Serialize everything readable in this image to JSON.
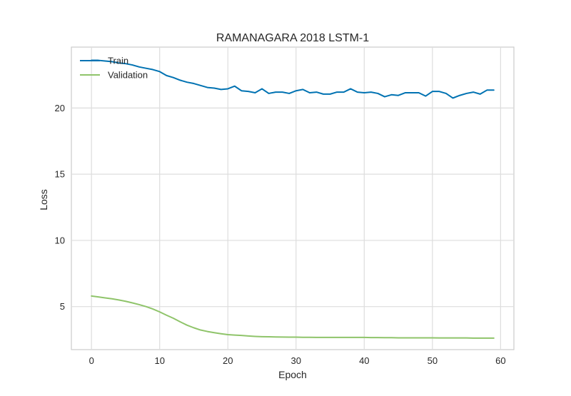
{
  "chart_data": {
    "type": "line",
    "title": "RAMANAGARA 2018 LSTM-1",
    "xlabel": "Epoch",
    "ylabel": "Loss",
    "xlim": [
      -2.95,
      61.95
    ],
    "ylim": [
      1.75,
      24.6
    ],
    "xticks": [
      0,
      10,
      20,
      30,
      40,
      50,
      60
    ],
    "yticks": [
      5,
      10,
      15,
      20
    ],
    "grid": true,
    "legend_position": "top-left",
    "x": [
      0,
      1,
      2,
      3,
      4,
      5,
      6,
      7,
      8,
      9,
      10,
      11,
      12,
      13,
      14,
      15,
      16,
      17,
      18,
      19,
      20,
      21,
      22,
      23,
      24,
      25,
      26,
      27,
      28,
      29,
      30,
      31,
      32,
      33,
      34,
      35,
      36,
      37,
      38,
      39,
      40,
      41,
      42,
      43,
      44,
      45,
      46,
      47,
      48,
      49,
      50,
      51,
      52,
      53,
      54,
      55,
      56,
      57,
      58,
      59
    ],
    "series": [
      {
        "name": "Train",
        "color": "#0072b2",
        "values": [
          23.6,
          23.6,
          23.55,
          23.5,
          23.4,
          23.35,
          23.25,
          23.1,
          23.0,
          22.9,
          22.75,
          22.45,
          22.3,
          22.1,
          21.95,
          21.85,
          21.7,
          21.55,
          21.5,
          21.4,
          21.45,
          21.65,
          21.3,
          21.25,
          21.15,
          21.45,
          21.1,
          21.2,
          21.2,
          21.1,
          21.3,
          21.4,
          21.15,
          21.2,
          21.05,
          21.05,
          21.2,
          21.2,
          21.45,
          21.2,
          21.15,
          21.2,
          21.1,
          20.85,
          21.0,
          20.95,
          21.15,
          21.15,
          21.15,
          20.9,
          21.25,
          21.25,
          21.1,
          20.75,
          20.95,
          21.1,
          21.2,
          21.05,
          21.35,
          21.35
        ]
      },
      {
        "name": "Validation",
        "color": "#8fc46a",
        "values": [
          5.8,
          5.73,
          5.66,
          5.59,
          5.5,
          5.4,
          5.28,
          5.15,
          5.0,
          4.82,
          4.6,
          4.35,
          4.12,
          3.85,
          3.6,
          3.4,
          3.23,
          3.12,
          3.03,
          2.95,
          2.88,
          2.85,
          2.82,
          2.78,
          2.75,
          2.73,
          2.72,
          2.71,
          2.7,
          2.69,
          2.69,
          2.68,
          2.68,
          2.67,
          2.67,
          2.67,
          2.67,
          2.67,
          2.67,
          2.67,
          2.67,
          2.66,
          2.66,
          2.65,
          2.65,
          2.64,
          2.64,
          2.64,
          2.64,
          2.64,
          2.64,
          2.63,
          2.63,
          2.63,
          2.63,
          2.63,
          2.62,
          2.62,
          2.62,
          2.62
        ]
      }
    ]
  }
}
